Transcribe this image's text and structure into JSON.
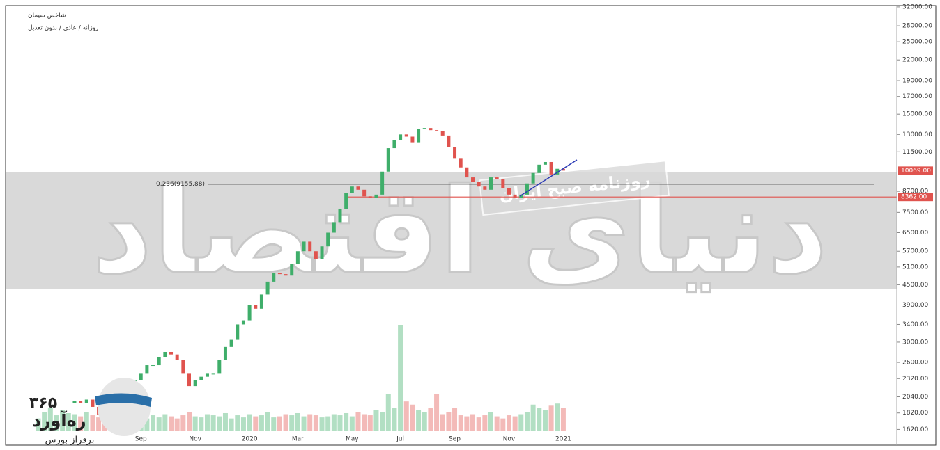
{
  "chart_data": {
    "type": "candlestick",
    "title": "شاخص سیمان",
    "subtitle": "روزانه / عادی / بدون تعدیل",
    "log_scale": true,
    "up_color": "#3fae6a",
    "down_color": "#e0534e",
    "categories": [
      null,
      null,
      null,
      null,
      null,
      null,
      null,
      null,
      null,
      null,
      null,
      null,
      null,
      null,
      null,
      null,
      null,
      "Sep",
      null,
      null,
      null,
      null,
      null,
      null,
      null,
      null,
      "Nov",
      null,
      null,
      null,
      null,
      null,
      null,
      null,
      null,
      "2020",
      null,
      null,
      null,
      null,
      null,
      null,
      null,
      "Mar",
      null,
      null,
      null,
      null,
      null,
      null,
      null,
      null,
      "May",
      null,
      null,
      null,
      null,
      null,
      null,
      null,
      "Jul",
      null,
      null,
      null,
      null,
      null,
      null,
      null,
      null,
      "Sep",
      null,
      null,
      null,
      null,
      null,
      null,
      null,
      null,
      "Nov",
      null,
      null,
      null,
      null,
      null,
      null,
      null,
      null,
      "2021"
    ],
    "open": [
      null,
      null,
      null,
      null,
      null,
      null,
      1950,
      1980,
      1950,
      2000,
      1900,
      1800,
      1750,
      1800,
      1900,
      2000,
      2150,
      2300,
      2400,
      2550,
      2550,
      2700,
      2800,
      2750,
      2650,
      2400,
      2200,
      2300,
      2350,
      2400,
      2400,
      2650,
      2900,
      3050,
      3400,
      3500,
      3900,
      3800,
      4200,
      4600,
      4900,
      4850,
      4800,
      5200,
      5700,
      6100,
      5700,
      5400,
      5900,
      6500,
      7000,
      7700,
      8600,
      9000,
      8800,
      8400,
      8300,
      8500,
      10000,
      11800,
      12500,
      13000,
      12800,
      12300,
      13500,
      13600,
      13400,
      13300,
      12900,
      11900,
      11000,
      10300,
      9600,
      9300,
      9000,
      8800,
      9600,
      9500,
      8900,
      8500,
      8300,
      8500,
      9200,
      9900,
      10500,
      10700,
      9800,
      10200
    ],
    "close": [
      null,
      null,
      null,
      null,
      null,
      null,
      1980,
      1950,
      2000,
      1900,
      1800,
      1750,
      1800,
      1900,
      2000,
      2150,
      2300,
      2400,
      2550,
      2550,
      2700,
      2800,
      2750,
      2650,
      2400,
      2200,
      2300,
      2350,
      2400,
      2400,
      2650,
      2900,
      3050,
      3400,
      3500,
      3900,
      3800,
      4200,
      4600,
      4900,
      4850,
      4800,
      5200,
      5700,
      6100,
      5700,
      5400,
      5900,
      6500,
      7000,
      7700,
      8600,
      9000,
      8800,
      8400,
      8300,
      8500,
      10000,
      11800,
      12500,
      13000,
      12800,
      12300,
      13500,
      13600,
      13400,
      13300,
      12900,
      11900,
      11000,
      10300,
      9600,
      9300,
      9000,
      8800,
      9600,
      9500,
      8900,
      8500,
      8300,
      8500,
      9200,
      9900,
      10500,
      10700,
      9800,
      10200,
      10069
    ],
    "volume": [
      12,
      18,
      22,
      15,
      20,
      17,
      16,
      14,
      18,
      15,
      13,
      17,
      20,
      14,
      16,
      15,
      18,
      14,
      12,
      15,
      13,
      16,
      14,
      12,
      15,
      18,
      14,
      13,
      16,
      15,
      14,
      17,
      12,
      15,
      13,
      16,
      14,
      15,
      18,
      13,
      14,
      16,
      15,
      17,
      14,
      16,
      15,
      13,
      14,
      16,
      15,
      17,
      14,
      18,
      16,
      15,
      20,
      18,
      35,
      22,
      100,
      28,
      25,
      20,
      18,
      22,
      35,
      16,
      18,
      22,
      15,
      14,
      16,
      13,
      15,
      18,
      14,
      12,
      15,
      14,
      16,
      18,
      25,
      22,
      20,
      24,
      26,
      22
    ],
    "ylim": [
      1450,
      32300
    ],
    "yticks": [
      {
        "value": 1620,
        "label": "1620.00"
      },
      {
        "value": 1820,
        "label": "1820.00"
      },
      {
        "value": 2040,
        "label": "2040.00"
      },
      {
        "value": 2320,
        "label": "2320.00"
      },
      {
        "value": 2600,
        "label": "2600.00"
      },
      {
        "value": 3000,
        "label": "3000.00"
      },
      {
        "value": 3400,
        "label": "3400.00"
      },
      {
        "value": 3900,
        "label": "3900.00"
      },
      {
        "value": 4500,
        "label": "4500.00"
      },
      {
        "value": 5100,
        "label": "5100.00"
      },
      {
        "value": 5700,
        "label": "5700.00"
      },
      {
        "value": 6500,
        "label": "6500.00"
      },
      {
        "value": 7500,
        "label": "7500.00"
      },
      {
        "value": 8700,
        "label": "8700.00"
      },
      {
        "value": 11500,
        "label": "11500.00"
      },
      {
        "value": 13000,
        "label": "13000.00"
      },
      {
        "value": 15000,
        "label": "15000.00"
      },
      {
        "value": 17000,
        "label": "17000.00"
      },
      {
        "value": 19000,
        "label": "19000.00"
      },
      {
        "value": 22000,
        "label": "22000.00"
      },
      {
        "value": 25000,
        "label": "25000.00"
      },
      {
        "value": 28000,
        "label": "28000.00"
      },
      {
        "value": 32000,
        "label": "32000.00"
      }
    ],
    "price_labels": [
      {
        "value": 10069,
        "label": "10069.00"
      },
      {
        "value": 8362,
        "label": "8362.00"
      }
    ],
    "fib_level": {
      "value": 9155.88,
      "label": "0.236(9155.88)"
    },
    "watermark": {
      "main": "دنیای اقتصاد",
      "stamp": "روزنامه صبح ایران",
      "logo_number": "۳۶۵",
      "logo_name": "ره‌آورد",
      "logo_tagline": "برفراز بورس"
    }
  }
}
